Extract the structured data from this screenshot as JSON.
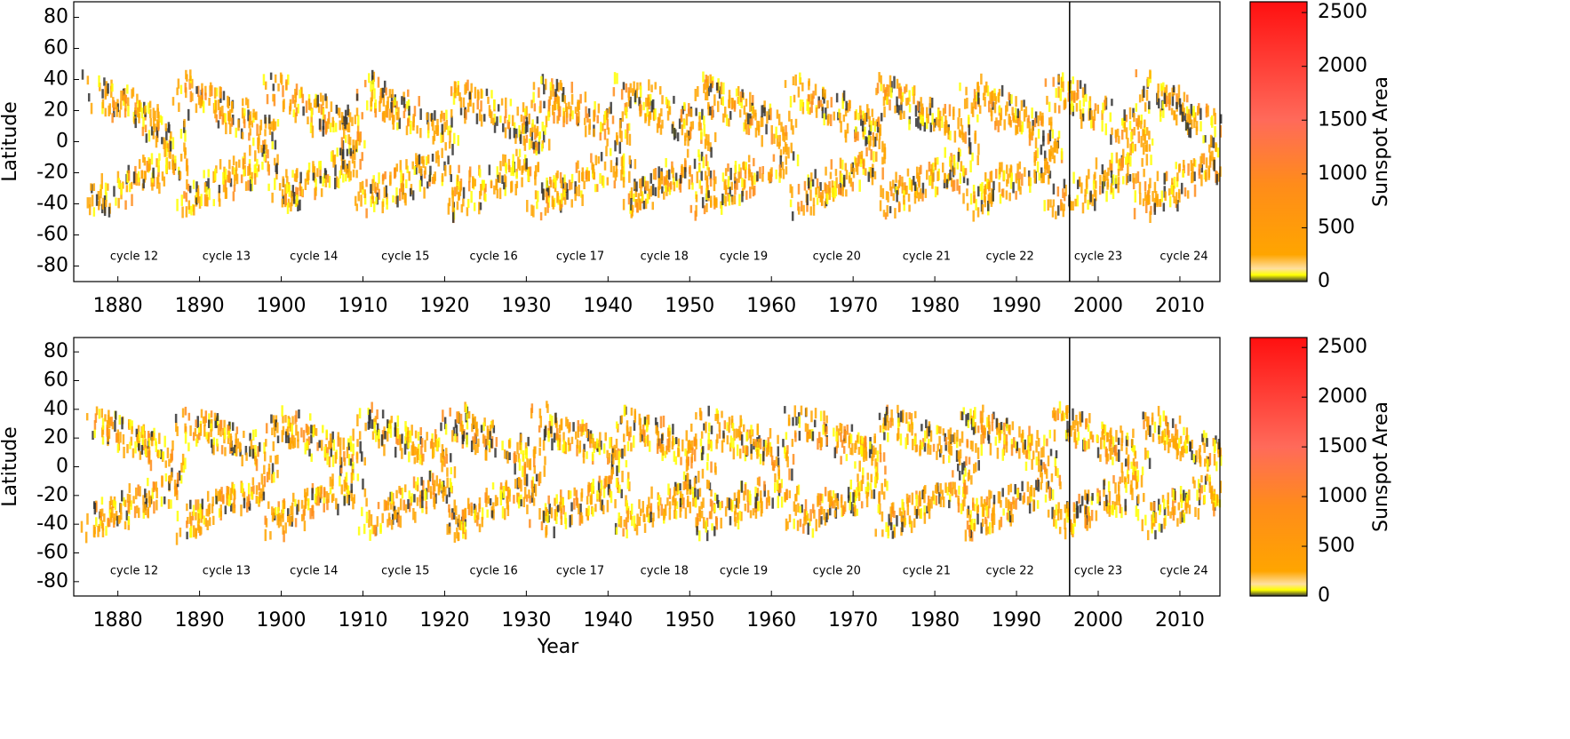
{
  "chart_data": [
    {
      "type": "heatmap",
      "ylabel": "Latitude",
      "colorbar_label": "Sunspot Area",
      "xlim": [
        1874.6,
        2014.9
      ],
      "xticks": [
        1880,
        1890,
        1900,
        1910,
        1920,
        1930,
        1940,
        1950,
        1960,
        1970,
        1980,
        1990,
        2000,
        2010
      ],
      "ylim": [
        -90,
        90
      ],
      "yticks": [
        -80,
        -60,
        -40,
        -20,
        0,
        20,
        40,
        60,
        80
      ],
      "clim": [
        0,
        2600
      ],
      "cticks": [
        0,
        500,
        1000,
        1500,
        2000,
        2500
      ],
      "colorscale": [
        [
          0,
          "#333333"
        ],
        [
          60,
          "#ffff00"
        ],
        [
          120,
          "#ffe0a0"
        ],
        [
          250,
          "#ffa500"
        ],
        [
          900,
          "#ff8c1a"
        ],
        [
          1500,
          "#ff6a5a"
        ],
        [
          2600,
          "#ff1010"
        ]
      ],
      "vline": 1996.5,
      "annotations": [
        {
          "text": "cycle 12",
          "x": 1882
        },
        {
          "text": "cycle 13",
          "x": 1893.3
        },
        {
          "text": "cycle 14",
          "x": 1904
        },
        {
          "text": "cycle 15",
          "x": 1915.2
        },
        {
          "text": "cycle 16",
          "x": 1926
        },
        {
          "text": "cycle 17",
          "x": 1936.6
        },
        {
          "text": "cycle 18",
          "x": 1946.9
        },
        {
          "text": "cycle 19",
          "x": 1956.6
        },
        {
          "text": "cycle 20",
          "x": 1968
        },
        {
          "text": "cycle 21",
          "x": 1979
        },
        {
          "text": "cycle 22",
          "x": 1989.2
        },
        {
          "text": "cycle 23",
          "x": 2000
        },
        {
          "text": "cycle 24",
          "x": 2010.5
        }
      ]
    },
    {
      "type": "heatmap",
      "xlabel": "Year",
      "ylabel": "Latitude",
      "colorbar_label": "Sunspot Area",
      "xlim": [
        1874.6,
        2014.9
      ],
      "xticks": [
        1880,
        1890,
        1900,
        1910,
        1920,
        1930,
        1940,
        1950,
        1960,
        1970,
        1980,
        1990,
        2000,
        2010
      ],
      "ylim": [
        -90,
        90
      ],
      "yticks": [
        -80,
        -60,
        -40,
        -20,
        0,
        20,
        40,
        60,
        80
      ],
      "clim": [
        0,
        2600
      ],
      "cticks": [
        0,
        500,
        1000,
        1500,
        2000,
        2500
      ],
      "colorscale": [
        [
          0,
          "#333333"
        ],
        [
          60,
          "#ffff00"
        ],
        [
          120,
          "#ffe0a0"
        ],
        [
          250,
          "#ffa500"
        ],
        [
          900,
          "#ff8c1a"
        ],
        [
          1500,
          "#ff6a5a"
        ],
        [
          2600,
          "#ff1010"
        ]
      ],
      "vline": 1996.5,
      "annotations": [
        {
          "text": "cycle 12",
          "x": 1882
        },
        {
          "text": "cycle 13",
          "x": 1893.3
        },
        {
          "text": "cycle 14",
          "x": 1904
        },
        {
          "text": "cycle 15",
          "x": 1915.2
        },
        {
          "text": "cycle 16",
          "x": 1926
        },
        {
          "text": "cycle 17",
          "x": 1936.6
        },
        {
          "text": "cycle 18",
          "x": 1946.9
        },
        {
          "text": "cycle 19",
          "x": 1956.6
        },
        {
          "text": "cycle 20",
          "x": 1968
        },
        {
          "text": "cycle 21",
          "x": 1979
        },
        {
          "text": "cycle 22",
          "x": 1989.2
        },
        {
          "text": "cycle 23",
          "x": 2000
        },
        {
          "text": "cycle 24",
          "x": 2010.5
        }
      ]
    }
  ]
}
